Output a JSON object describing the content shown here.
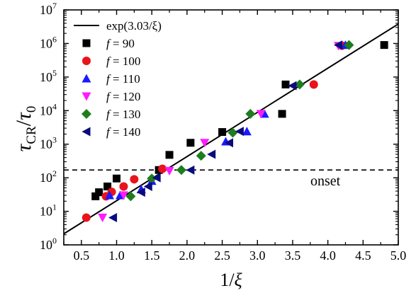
{
  "chart_data": {
    "type": "scatter",
    "x_axis": {
      "label_main": "1/",
      "label_symbol": "ξ",
      "range": [
        0.25,
        5.0
      ],
      "ticks": [
        0.5,
        1.0,
        1.5,
        2.0,
        2.5,
        3.0,
        3.5,
        4.0,
        4.5,
        5.0
      ],
      "tick_labels": [
        "0.5",
        "1.0",
        "1.5",
        "2.0",
        "2.5",
        "3.0",
        "3.5",
        "4.0",
        "4.5",
        "5.0"
      ]
    },
    "y_axis": {
      "scale": "log",
      "label_main": "τ",
      "label_sub": "CR",
      "label_sep": "/",
      "label_tau": "τ",
      "label_sub2": "0",
      "range": [
        1,
        10000000
      ],
      "tick_exponents": [
        0,
        1,
        2,
        3,
        4,
        5,
        6,
        7
      ],
      "tick_base": "10"
    },
    "fit_line": {
      "name": "exp(3.03/ξ)",
      "coefficient": 3.03,
      "style": "solid"
    },
    "reference_line": {
      "name": "onset",
      "y": 170,
      "style": "dashed"
    },
    "legend_position": "top-left",
    "series": [
      {
        "name": "f = 90",
        "name_f": "f",
        "name_rest": " = 90",
        "marker": "square",
        "color": "#000000",
        "points": [
          [
            0.7,
            28
          ],
          [
            0.75,
            37
          ],
          [
            0.87,
            55
          ],
          [
            1.0,
            95
          ],
          [
            1.6,
            170
          ],
          [
            1.75,
            480
          ],
          [
            2.05,
            1100
          ],
          [
            2.5,
            2300
          ],
          [
            3.4,
            60000
          ],
          [
            3.35,
            8000
          ],
          [
            4.8,
            900000
          ]
        ]
      },
      {
        "name": "f = 100",
        "name_f": "f",
        "name_rest": " = 100",
        "marker": "circle",
        "color": "#e8131b",
        "points": [
          [
            0.57,
            6.5
          ],
          [
            0.85,
            28
          ],
          [
            0.93,
            38
          ],
          [
            1.1,
            55
          ],
          [
            1.25,
            90
          ],
          [
            1.65,
            185
          ],
          [
            3.8,
            60000
          ],
          [
            4.2,
            860000
          ]
        ]
      },
      {
        "name": "f = 110",
        "name_f": "f",
        "name_rest": " = 110",
        "marker": "triangle-up",
        "color": "#1a1aff",
        "points": [
          [
            0.9,
            30
          ],
          [
            1.05,
            30
          ],
          [
            1.35,
            45
          ],
          [
            1.5,
            80
          ],
          [
            2.55,
            1200
          ],
          [
            2.85,
            2400
          ],
          [
            3.1,
            8000
          ],
          [
            4.25,
            900000
          ]
        ]
      },
      {
        "name": "f = 120",
        "name_f": "f",
        "name_rest": " = 120",
        "marker": "triangle-down",
        "color": "#ff1aff",
        "points": [
          [
            0.8,
            6.5
          ],
          [
            1.1,
            30
          ],
          [
            1.75,
            160
          ],
          [
            2.25,
            1100
          ],
          [
            3.05,
            8000
          ],
          [
            4.15,
            850000
          ]
        ]
      },
      {
        "name": "f = 130",
        "name_f": "f",
        "name_rest": " = 130",
        "marker": "diamond",
        "color": "#1e7d1e",
        "points": [
          [
            1.2,
            28
          ],
          [
            1.5,
            95
          ],
          [
            1.92,
            170
          ],
          [
            2.2,
            450
          ],
          [
            2.65,
            2200
          ],
          [
            2.9,
            8000
          ],
          [
            3.6,
            60000
          ],
          [
            4.3,
            900000
          ]
        ]
      },
      {
        "name": "f = 140",
        "name_f": "f",
        "name_rest": " = 140",
        "marker": "triangle-left",
        "color": "#0b0b7d",
        "points": [
          [
            0.95,
            6.5
          ],
          [
            1.35,
            37
          ],
          [
            1.45,
            55
          ],
          [
            1.57,
            100
          ],
          [
            2.05,
            170
          ],
          [
            2.35,
            500
          ],
          [
            2.6,
            1100
          ],
          [
            2.75,
            2400
          ],
          [
            3.5,
            55000
          ],
          [
            4.15,
            900000
          ]
        ]
      }
    ]
  }
}
